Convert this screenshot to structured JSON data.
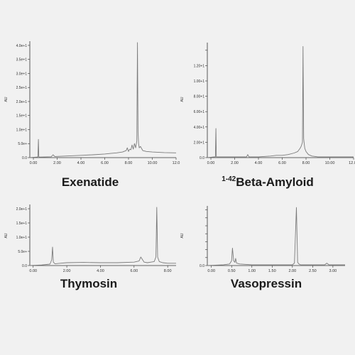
{
  "colors": {
    "background": "#f1f1f1",
    "axis": "#333333",
    "trace": "#7a7a7a",
    "title": "#1b1b1b"
  },
  "chart_data": [
    {
      "id": "exenatide",
      "type": "line",
      "title": "Exenatide",
      "title_superscript": "",
      "ylabel": "AU",
      "xlabel": "",
      "xlim": [
        -0.3,
        12.0
      ],
      "ylim": [
        0,
        4.15
      ],
      "x_ticks": [
        0,
        2,
        4,
        6,
        8,
        10,
        12
      ],
      "x_tick_labels": [
        "0.00",
        "2.00",
        "4.00",
        "6.00",
        "8.00",
        "10.00",
        "12.0"
      ],
      "y_ticks": [
        0,
        0.5,
        1.0,
        1.5,
        2.0,
        2.5,
        3.0,
        3.5,
        4.0
      ],
      "y_tick_labels": [
        "0.0",
        "5.0e+",
        "1.0e+1",
        "1.5e+1",
        "2.0e+1",
        "2.5e+1",
        "3.0e+1",
        "3.5e+1",
        "4.0e+1"
      ],
      "series": [
        {
          "x": [
            -0.3,
            0.3,
            0.38,
            0.42,
            0.46,
            0.5,
            0.6,
            1.5,
            1.65,
            1.8,
            3,
            4,
            5,
            6,
            6.5,
            7,
            7.5,
            7.8,
            7.9,
            8.0,
            8.1,
            8.2,
            8.3,
            8.4,
            8.5,
            8.6,
            8.7,
            8.75,
            8.8,
            8.85,
            8.9,
            9.0,
            9.2,
            9.5,
            10,
            11,
            12
          ],
          "y": [
            0.0,
            0.02,
            0.03,
            0.65,
            0.03,
            0.02,
            0.02,
            0.03,
            0.1,
            0.04,
            0.06,
            0.08,
            0.1,
            0.13,
            0.15,
            0.17,
            0.2,
            0.25,
            0.35,
            0.22,
            0.3,
            0.28,
            0.45,
            0.3,
            0.5,
            0.35,
            0.6,
            4.1,
            0.9,
            0.5,
            0.35,
            0.4,
            0.25,
            0.22,
            0.2,
            0.18,
            0.17
          ]
        }
      ]
    },
    {
      "id": "beta-amyloid",
      "type": "line",
      "title": "Beta-Amyloid",
      "title_superscript": "1-42",
      "ylabel": "AU",
      "xlabel": "",
      "xlim": [
        -0.3,
        12.0
      ],
      "ylim": [
        0,
        1.5
      ],
      "x_ticks": [
        0,
        2,
        4,
        6,
        8,
        10,
        12
      ],
      "x_tick_labels": [
        "0.00",
        "2.00",
        "4.00",
        "6.00",
        "8.00",
        "10.00",
        "12.00"
      ],
      "y_ticks": [
        0,
        0.2,
        0.4,
        0.6,
        0.8,
        1.0,
        1.2,
        1.4
      ],
      "y_tick_labels": [
        "0.0",
        "2.00+1",
        "4.00+1",
        "6.00+1",
        "8.00+1",
        "1.00+1",
        "1.20+1",
        ""
      ],
      "series": [
        {
          "x": [
            -0.3,
            0.3,
            0.38,
            0.42,
            0.46,
            0.6,
            2.0,
            3.0,
            3.1,
            3.2,
            4.0,
            5.0,
            5.5,
            6.0,
            6.5,
            7.0,
            7.3,
            7.5,
            7.6,
            7.7,
            7.75,
            7.8,
            7.85,
            7.9,
            8.0,
            8.2,
            8.5,
            9.0,
            10,
            11,
            12
          ],
          "y": [
            0.0,
            0.01,
            0.01,
            0.38,
            0.01,
            0.01,
            0.01,
            0.01,
            0.04,
            0.01,
            0.01,
            0.02,
            0.03,
            0.03,
            0.04,
            0.06,
            0.08,
            0.12,
            0.15,
            0.2,
            1.45,
            0.25,
            0.18,
            0.12,
            0.08,
            0.04,
            0.02,
            0.01,
            0.01,
            0.01,
            0.01
          ]
        }
      ]
    },
    {
      "id": "thymosin",
      "type": "line",
      "title": "Thymosin",
      "title_superscript": "",
      "ylabel": "AU",
      "xlabel": "",
      "xlim": [
        -0.2,
        8.5
      ],
      "ylim": [
        0,
        2.15
      ],
      "x_ticks": [
        0,
        2,
        4,
        6,
        8
      ],
      "x_tick_labels": [
        "0.00",
        "2.00",
        "4.00",
        "6.00",
        "8.00"
      ],
      "y_ticks": [
        0,
        0.5,
        1.0,
        1.5,
        2.0
      ],
      "y_tick_labels": [
        "0.0",
        "5.0e+",
        "1.0e+1",
        "1.5e+1",
        "2.0e+1"
      ],
      "series": [
        {
          "x": [
            -0.2,
            0.5,
            1.0,
            1.1,
            1.15,
            1.2,
            1.3,
            1.6,
            2.0,
            3.0,
            4.0,
            5.0,
            6.0,
            6.3,
            6.4,
            6.6,
            6.8,
            7.0,
            7.2,
            7.3,
            7.35,
            7.4,
            7.5,
            7.7,
            8.0,
            8.5
          ],
          "y": [
            0.0,
            0.02,
            0.05,
            0.2,
            0.65,
            0.12,
            0.06,
            0.08,
            0.1,
            0.11,
            0.1,
            0.1,
            0.12,
            0.16,
            0.3,
            0.12,
            0.1,
            0.12,
            0.14,
            0.3,
            2.05,
            0.3,
            0.14,
            0.1,
            0.08,
            0.08
          ]
        }
      ]
    },
    {
      "id": "vasopressin",
      "type": "line",
      "title": "Vasopressin",
      "title_superscript": "",
      "ylabel": "AU",
      "xlabel": "",
      "xlim": [
        -0.1,
        3.3
      ],
      "ylim": [
        0,
        0.075
      ],
      "x_ticks": [
        0,
        0.5,
        1.0,
        1.5,
        2.0,
        2.5,
        3.0
      ],
      "x_tick_labels": [
        "0.00",
        "0.50",
        "1.00",
        "1.50",
        "2.00",
        "2.50",
        "3.00"
      ],
      "y_ticks": [
        0,
        0.01,
        0.02,
        0.03,
        0.04,
        0.05,
        0.06,
        0.07
      ],
      "y_tick_labels": [
        "0.0",
        "",
        "",
        "",
        "",
        "",
        "",
        ""
      ],
      "series": [
        {
          "x": [
            -0.1,
            0.3,
            0.45,
            0.5,
            0.52,
            0.55,
            0.58,
            0.6,
            0.62,
            0.7,
            1.0,
            1.5,
            2.0,
            2.05,
            2.1,
            2.13,
            2.16,
            2.2,
            2.3,
            2.6,
            2.8,
            2.85,
            2.9,
            3.0,
            3.3
          ],
          "y": [
            0.0,
            0.001,
            0.002,
            0.006,
            0.022,
            0.006,
            0.004,
            0.009,
            0.003,
            0.002,
            0.001,
            0.001,
            0.001,
            0.003,
            0.073,
            0.004,
            0.002,
            0.001,
            0.001,
            0.001,
            0.001,
            0.003,
            0.001,
            0.001,
            0.001
          ]
        }
      ]
    }
  ]
}
